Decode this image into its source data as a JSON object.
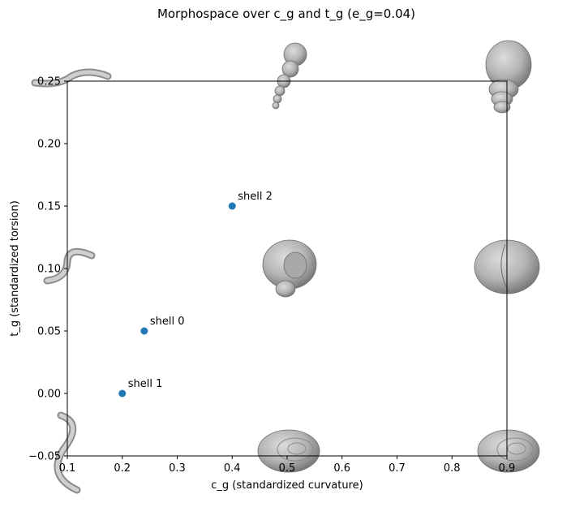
{
  "chart_data": {
    "type": "scatter",
    "title": "Morphospace over c_g and t_g (e_g=0.04)",
    "xlabel": "c_g (standardized curvature)",
    "ylabel": "t_g (standardized torsion)",
    "xlim": [
      0.1,
      0.9
    ],
    "ylim": [
      -0.05,
      0.25
    ],
    "xticks": [
      "0.1",
      "0.2",
      "0.3",
      "0.4",
      "0.5",
      "0.6",
      "0.7",
      "0.8",
      "0.9"
    ],
    "yticks": [
      "−0.05",
      "0.00",
      "0.05",
      "0.10",
      "0.15",
      "0.20",
      "0.25"
    ],
    "grid": false,
    "marker_color": "#1f77b4",
    "points": [
      {
        "label": "shell 0",
        "x": 0.24,
        "y": 0.05
      },
      {
        "label": "shell 1",
        "x": 0.2,
        "y": 0.0
      },
      {
        "label": "shell 2",
        "x": 0.4,
        "y": 0.15
      }
    ],
    "background_shells": [
      {
        "x": 0.1,
        "y": 0.25,
        "form": "tube"
      },
      {
        "x": 0.5,
        "y": 0.25,
        "form": "spire"
      },
      {
        "x": 0.9,
        "y": 0.25,
        "form": "tall"
      },
      {
        "x": 0.1,
        "y": 0.1,
        "form": "tube"
      },
      {
        "x": 0.5,
        "y": 0.1,
        "form": "coil"
      },
      {
        "x": 0.9,
        "y": 0.1,
        "form": "globe"
      },
      {
        "x": 0.1,
        "y": -0.05,
        "form": "tube"
      },
      {
        "x": 0.5,
        "y": -0.05,
        "form": "flat"
      },
      {
        "x": 0.9,
        "y": -0.05,
        "form": "flat"
      }
    ]
  }
}
